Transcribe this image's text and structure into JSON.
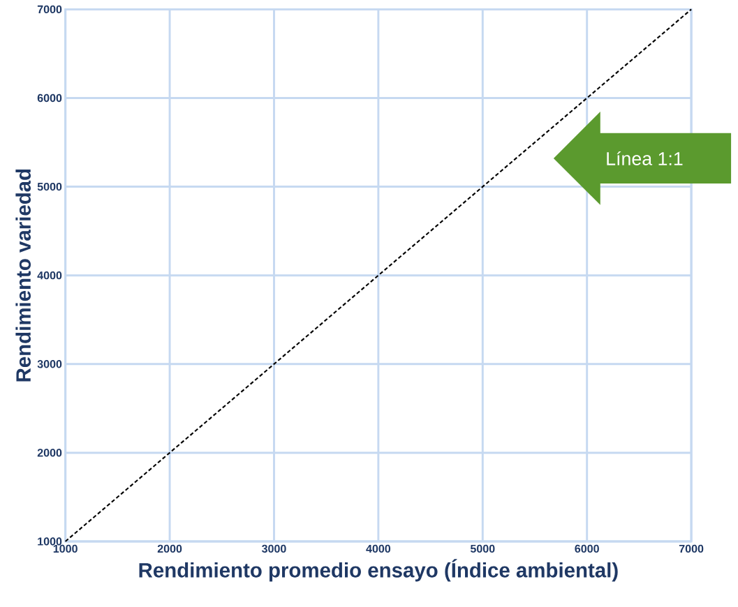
{
  "chart_data": {
    "type": "line",
    "xlabel": "Rendimiento promedio ensayo (Índice ambiental)",
    "ylabel": "Rendimiento variedad",
    "x": [
      1000,
      7000
    ],
    "series": [
      {
        "color": "#000000",
        "values": [
          1000,
          7000
        ]
      }
    ],
    "line_style": "dashed",
    "marker": "none",
    "grid": true,
    "xlim": [
      1000,
      7000
    ],
    "ylim": [
      1000,
      7000
    ],
    "xticks": [
      1000,
      2000,
      3000,
      4000,
      5000,
      6000,
      7000
    ],
    "yticks": [
      1000,
      2000,
      3000,
      4000,
      5000,
      6000,
      7000
    ],
    "annotations": [
      "Línea 1:1"
    ]
  }
}
